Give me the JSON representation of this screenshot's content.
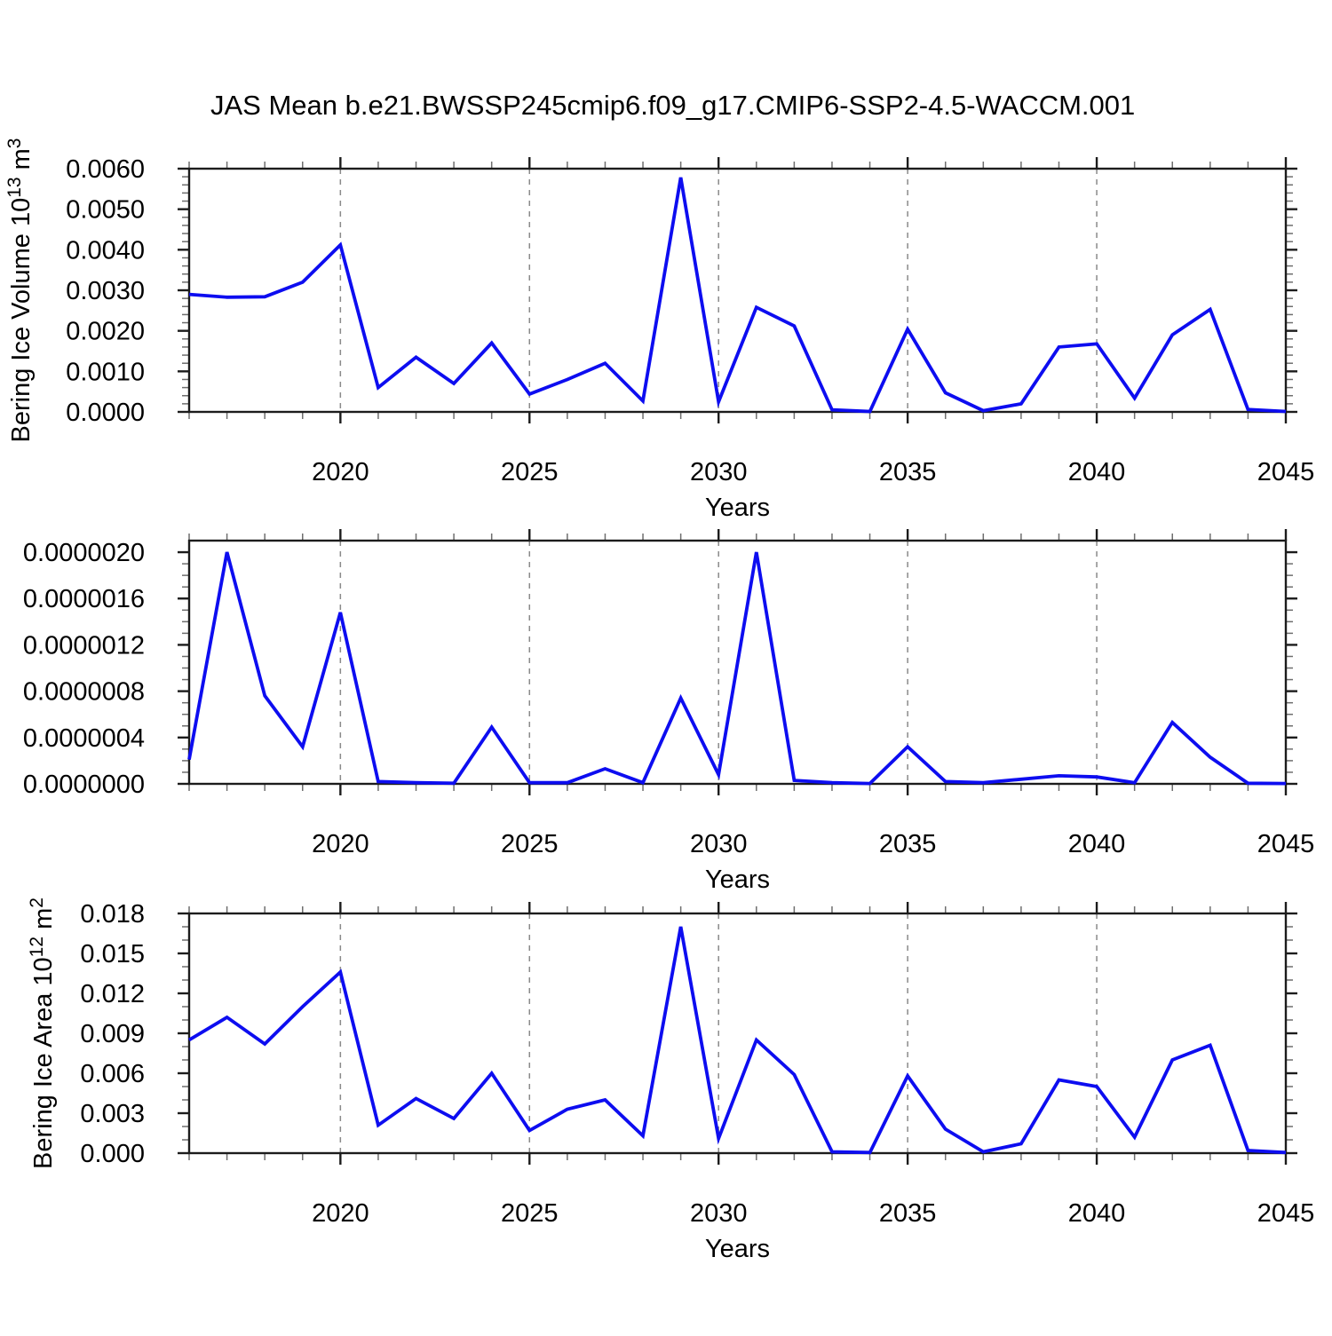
{
  "title": "JAS Mean b.e21.BWSSP245cmip6.f09_g17.CMIP6-SSP2-4.5-WACCM.001",
  "colors": {
    "line": "#0d0df0",
    "grid": "#8a8a8a",
    "axis": "#1c1c1c",
    "minor_tick": "#6e6e6e",
    "background": "#ffffff"
  },
  "x_axis": {
    "label": "Years",
    "range": [
      2016,
      2045
    ],
    "tick_years": [
      2020,
      2025,
      2030,
      2035,
      2040,
      2045
    ],
    "tick_labels": [
      "2020",
      "2025",
      "2030",
      "2035",
      "2040",
      "2045"
    ],
    "grid_years": [
      2020,
      2025,
      2030,
      2035,
      2040
    ],
    "minor_tick_every": 1
  },
  "chart_data": [
    {
      "type": "line",
      "name": "bering-ice-volume",
      "ylabel": "Bering Ice Volume 10^13 m^3",
      "ylabel_parts": [
        {
          "t": "Bering Ice Volume 10"
        },
        {
          "t": "13",
          "sup": true
        },
        {
          "t": " m"
        },
        {
          "t": "3",
          "sup": true
        }
      ],
      "xlabel": "Years",
      "years": [
        2016,
        2017,
        2018,
        2019,
        2020,
        2021,
        2022,
        2023,
        2024,
        2025,
        2026,
        2027,
        2028,
        2029,
        2030,
        2031,
        2032,
        2033,
        2034,
        2035,
        2036,
        2037,
        2038,
        2039,
        2040,
        2041,
        2042,
        2043,
        2044,
        2045
      ],
      "values": [
        0.0029,
        0.00283,
        0.00284,
        0.0032,
        0.00412,
        0.0006,
        0.00135,
        0.0007,
        0.0017,
        0.00044,
        0.0008,
        0.0012,
        0.00027,
        0.00578,
        0.00025,
        0.00258,
        0.00212,
        5e-05,
        1e-05,
        0.00204,
        0.00047,
        3e-05,
        0.0002,
        0.0016,
        0.00168,
        0.00034,
        0.0019,
        0.00253,
        6e-05,
        1e-05
      ],
      "ylim": [
        0,
        0.006
      ],
      "y_axis_max": 0.006,
      "ytick_major": 0.001,
      "ytick_minor": 0.0002,
      "ytick_labels": [
        "0.0000",
        "0.0010",
        "0.0020",
        "0.0030",
        "0.0040",
        "0.0050",
        "0.0060"
      ],
      "grid": "vertical-dashed"
    },
    {
      "type": "line",
      "name": "bering-ice-middle-series",
      "ylabel": "",
      "ylabel_parts": null,
      "xlabel": "Years",
      "years": [
        2016,
        2017,
        2018,
        2019,
        2020,
        2021,
        2022,
        2023,
        2024,
        2025,
        2026,
        2027,
        2028,
        2029,
        2030,
        2031,
        2032,
        2033,
        2034,
        2035,
        2036,
        2037,
        2038,
        2039,
        2040,
        2041,
        2042,
        2043,
        2044,
        2045
      ],
      "values": [
        2.1e-07,
        2e-06,
        7.6e-07,
        3.2e-07,
        1.48e-06,
        2e-08,
        1e-08,
        5e-09,
        4.9e-07,
        1e-08,
        1e-08,
        1.3e-07,
        1e-08,
        7.4e-07,
        8e-08,
        2e-06,
        3e-08,
        1e-08,
        3e-09,
        3.2e-07,
        2e-08,
        1e-08,
        4e-08,
        7e-08,
        6e-08,
        1e-08,
        5.3e-07,
        2.3e-07,
        5e-09,
        3e-09
      ],
      "ylim": [
        0,
        2e-06
      ],
      "y_axis_max": 2.1e-06,
      "ytick_major": 4e-07,
      "ytick_minor": 1e-07,
      "ytick_labels": [
        "0.0000000",
        "0.0000004",
        "0.0000008",
        "0.0000012",
        "0.0000016",
        "0.0000020"
      ],
      "grid": "vertical-dashed"
    },
    {
      "type": "line",
      "name": "bering-ice-area",
      "ylabel": "Bering Ice Area 10^12 m^2",
      "ylabel_parts": [
        {
          "t": "Bering Ice Area 10"
        },
        {
          "t": "12",
          "sup": true
        },
        {
          "t": " m"
        },
        {
          "t": "2",
          "sup": true
        }
      ],
      "xlabel": "Years",
      "years": [
        2016,
        2017,
        2018,
        2019,
        2020,
        2021,
        2022,
        2023,
        2024,
        2025,
        2026,
        2027,
        2028,
        2029,
        2030,
        2031,
        2032,
        2033,
        2034,
        2035,
        2036,
        2037,
        2038,
        2039,
        2040,
        2041,
        2042,
        2043,
        2044,
        2045
      ],
      "values": [
        0.0085,
        0.0102,
        0.0082,
        0.011,
        0.0136,
        0.0021,
        0.0041,
        0.0026,
        0.006,
        0.0017,
        0.0033,
        0.004,
        0.0013,
        0.017,
        0.0011,
        0.0085,
        0.0059,
        0.0001,
        5e-05,
        0.0058,
        0.0018,
        0.0001,
        0.0007,
        0.0055,
        0.005,
        0.0012,
        0.007,
        0.0081,
        0.0002,
        5e-05
      ],
      "ylim": [
        0,
        0.018
      ],
      "y_axis_max": 0.018,
      "ytick_major": 0.003,
      "ytick_minor": 0.001,
      "ytick_labels": [
        "0.000",
        "0.003",
        "0.006",
        "0.009",
        "0.012",
        "0.015",
        "0.018"
      ],
      "grid": "vertical-dashed"
    }
  ]
}
